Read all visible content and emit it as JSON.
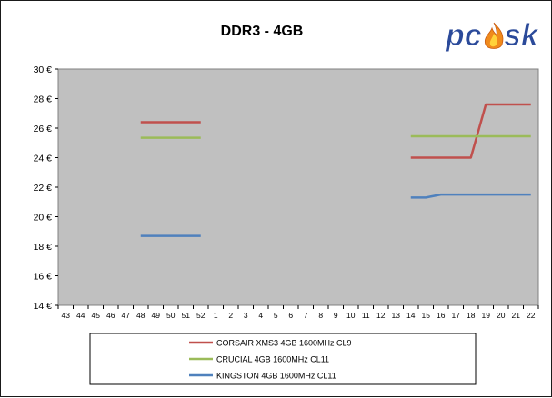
{
  "chart_data": {
    "type": "line",
    "title": "DDR3 - 4GB",
    "xlabel": "",
    "ylabel": "",
    "ylim": [
      14,
      30
    ],
    "y_ticks": [
      "14 €",
      "16 €",
      "18 €",
      "20 €",
      "22 €",
      "24 €",
      "26 €",
      "28 €",
      "30 €"
    ],
    "grid": false,
    "legend_position": "bottom",
    "categories": [
      "43",
      "44",
      "45",
      "46",
      "47",
      "48",
      "49",
      "50",
      "51",
      "52",
      "1",
      "2",
      "3",
      "4",
      "5",
      "6",
      "7",
      "8",
      "9",
      "10",
      "11",
      "12",
      "13",
      "14",
      "15",
      "16",
      "17",
      "18",
      "19",
      "20",
      "21",
      "22"
    ],
    "series": [
      {
        "name": "CORSAIR XMS3 4GB 1600MHz CL9",
        "color": "#c0504d",
        "values": [
          null,
          null,
          null,
          null,
          null,
          26.4,
          26.4,
          26.4,
          26.4,
          26.4,
          null,
          null,
          null,
          null,
          null,
          null,
          null,
          null,
          null,
          null,
          null,
          null,
          null,
          24.0,
          24.0,
          24.0,
          24.0,
          24.0,
          27.6,
          27.6,
          27.6,
          27.6
        ]
      },
      {
        "name": "CRUCIAL 4GB 1600MHz CL11",
        "color": "#9bbb59",
        "values": [
          null,
          null,
          null,
          null,
          null,
          25.35,
          25.35,
          25.35,
          25.35,
          25.35,
          null,
          null,
          null,
          null,
          null,
          null,
          null,
          null,
          null,
          null,
          null,
          null,
          null,
          25.45,
          25.45,
          25.45,
          25.45,
          25.45,
          25.45,
          25.45,
          25.45,
          25.45
        ]
      },
      {
        "name": "KINGSTON 4GB 1600MHz CL11",
        "color": "#4f81bd",
        "values": [
          null,
          null,
          null,
          null,
          null,
          18.7,
          18.7,
          18.7,
          18.7,
          18.7,
          null,
          null,
          null,
          null,
          null,
          null,
          null,
          null,
          null,
          null,
          null,
          null,
          null,
          21.3,
          21.3,
          21.5,
          21.5,
          21.5,
          21.5,
          21.5,
          21.5,
          21.5
        ]
      }
    ]
  },
  "logo": {
    "text": "pcsk",
    "colors": {
      "main": "#2b4a9a",
      "flame_outer": "#f08a1c",
      "flame_inner": "#ffd23a"
    }
  },
  "colors": {
    "plot_background": "#c0c0c0",
    "frame": "#1a1a1a"
  }
}
